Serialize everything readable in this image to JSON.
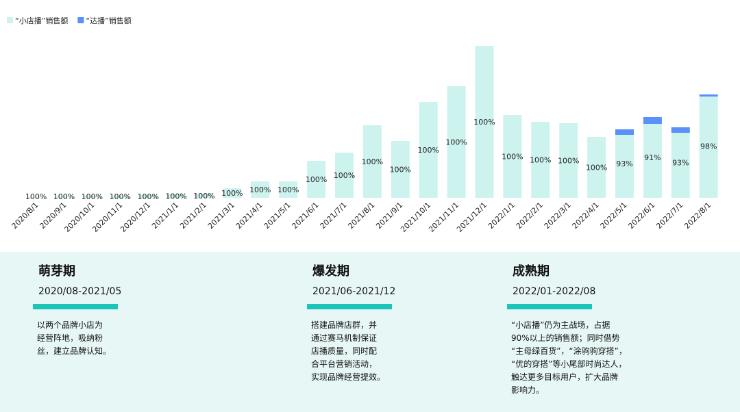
{
  "chart_data": {
    "type": "stacked_bar",
    "categories": [
      "2020/8/1",
      "2020/9/1",
      "2020/10/1",
      "2020/11/1",
      "2020/12/1",
      "2021/1/1",
      "2021/2/1",
      "2021/3/1",
      "2021/4/1",
      "2021/5/1",
      "2021/6/1",
      "2021/7/1",
      "2021/8/1",
      "2021/9/1",
      "2021/10/1",
      "2021/11/1",
      "2021/12/1",
      "2022/1/1",
      "2022/2/1",
      "2022/3/1",
      "2022/4/1",
      "2022/5/1",
      "2022/6/1",
      "2022/7/1",
      "2022/8/1"
    ],
    "series": [
      {
        "name": "“小店播”销售额",
        "color": "#cdf3ef",
        "values": [
          1,
          2,
          3,
          3,
          4,
          5,
          6,
          14,
          24,
          24,
          54,
          66,
          106,
          83,
          140,
          163,
          222,
          121,
          111,
          109,
          89,
          92,
          108,
          95,
          148
        ]
      },
      {
        "name": "“达播”销售额",
        "color": "#5b8ff9",
        "values": [
          0,
          0,
          0,
          0,
          0,
          0,
          0,
          0,
          0,
          0,
          0,
          0,
          0,
          0,
          0,
          0,
          0,
          0,
          0,
          0,
          0,
          8,
          10,
          8,
          3
        ]
      }
    ],
    "share_labels": [
      "100%",
      "100%",
      "100%",
      "100%",
      "100%",
      "100%",
      "100%",
      "100%",
      "100%",
      "100%",
      "100%",
      "100%",
      "100%",
      "100%",
      "100%",
      "100%",
      "100%",
      "100%",
      "100%",
      "100%",
      "100%",
      "93%",
      "91%",
      "93%",
      "98%"
    ],
    "ylim": [
      0,
      230
    ]
  },
  "stages": [
    {
      "title": "萌芽期",
      "period": "2020/08-2021/05",
      "lines": [
        "以两个品牌小店为",
        "经营阵地，吸纳粉",
        "丝，建立品牌认知。"
      ]
    },
    {
      "title": "爆发期",
      "period": "2021/06-2021/12",
      "lines": [
        "搭建品牌店群，并",
        "通过赛马机制保证",
        "店播质量，同时配",
        "合平台营销活动，",
        "实现品牌经营提效。"
      ]
    },
    {
      "title": "成熟期",
      "period": "2022/01-2022/08",
      "lines": [
        "“小店播”仍为主战场，占据",
        "90%以上的销售额；同时借势",
        "“主母绿百货”，“涂驹驹穿搭”，",
        "“优的穿搭”等小尾部时尚达人，",
        "触达更多目标用户，扩大品牌",
        "影响力。"
      ]
    }
  ]
}
